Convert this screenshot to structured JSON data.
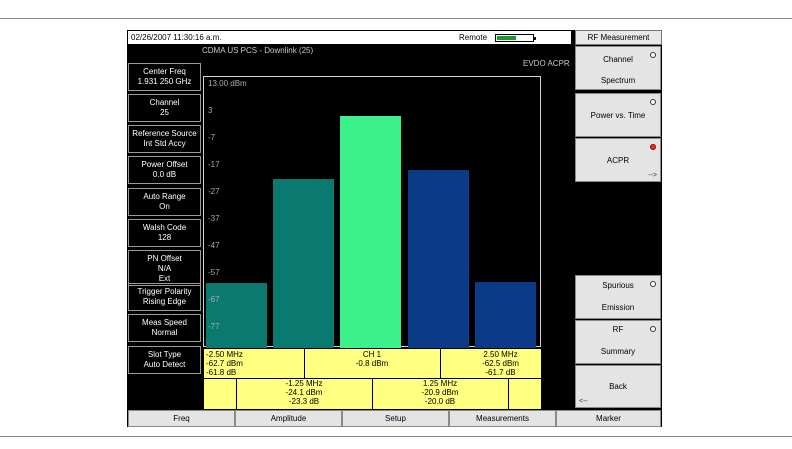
{
  "status": {
    "datetime": "02/26/2007 11:30:16 a.m.",
    "remote_label": "Remote",
    "battery_level": 0.55
  },
  "subtitle": "CDMA US PCS - Downlink (25)",
  "mode_label": "EVDO ACPR",
  "left_panel": [
    {
      "line1": "Center Freq",
      "line2": "1.931 250 GHz"
    },
    {
      "line1": "Channel",
      "line2": "25"
    },
    {
      "line1": "Reference Source",
      "line2": "Int Std Accy"
    },
    {
      "line1": "Power Offset",
      "line2": "0.0 dB"
    },
    {
      "line1": "Auto Range",
      "line2": "On"
    },
    {
      "line1": "Walsh Code",
      "line2": "128"
    },
    {
      "line1": "PN Offset",
      "line2": "N/A",
      "line3": "Ext"
    },
    {
      "line1": "Trigger Polarity",
      "line2": "Rising Edge"
    },
    {
      "line1": "Meas Speed",
      "line2": "Normal"
    },
    {
      "line1": "Slot Type",
      "line2": "Auto Detect"
    }
  ],
  "y_axis": {
    "ticks": [
      "13.00 dBm",
      "3",
      "-7",
      "-17",
      "-27",
      "-37",
      "-47",
      "-57",
      "-67",
      "-77"
    ]
  },
  "chart_data": {
    "type": "bar",
    "categories": [
      "-2.50 MHz",
      "-1.25 MHz",
      "CH 1",
      "1.25 MHz",
      "2.50 MHz"
    ],
    "values": [
      -62.7,
      -24.1,
      -0.8,
      -20.9,
      -62.5
    ],
    "colors": [
      "#0a7a70",
      "#0a7a70",
      "#3cf08a",
      "#0a3a88",
      "#0a3a88"
    ],
    "ylim": [
      -87,
      13
    ],
    "grid": false
  },
  "table": {
    "m250": {
      "freq": "-2.50 MHz",
      "dbm": "-62.7 dBm",
      "db": "-61.8 dB"
    },
    "ch1": {
      "label": "CH 1",
      "dbm": "-0.8 dBm"
    },
    "p250": {
      "freq": "2.50 MHz",
      "dbm": "-62.5 dBm",
      "db": "-61.7 dB"
    },
    "m125": {
      "freq": "-1.25 MHz",
      "dbm": "-24.1 dBm",
      "db": "-23.3 dB"
    },
    "p125": {
      "freq": "1.25 MHz",
      "dbm": "-20.9 dBm",
      "db": "-20.0 dB"
    }
  },
  "right_panel": {
    "title": "RF Measurement",
    "keys": {
      "channel_spectrum": {
        "line1": "Channel",
        "line2": "Spectrum"
      },
      "power_vs_time": {
        "line1": "",
        "line2": "Power vs. Time"
      },
      "acpr": {
        "line1": "ACPR",
        "arrow": "-->"
      },
      "spurious": {
        "line1": "Spurious",
        "line2": "Emission"
      },
      "rf_summary": {
        "line1": "RF",
        "line2": "Summary"
      },
      "back": {
        "line1": "Back",
        "arrow": "<--"
      }
    }
  },
  "bottom_keys": [
    "Freq",
    "Amplitude",
    "Setup",
    "Measurements",
    "Marker"
  ]
}
